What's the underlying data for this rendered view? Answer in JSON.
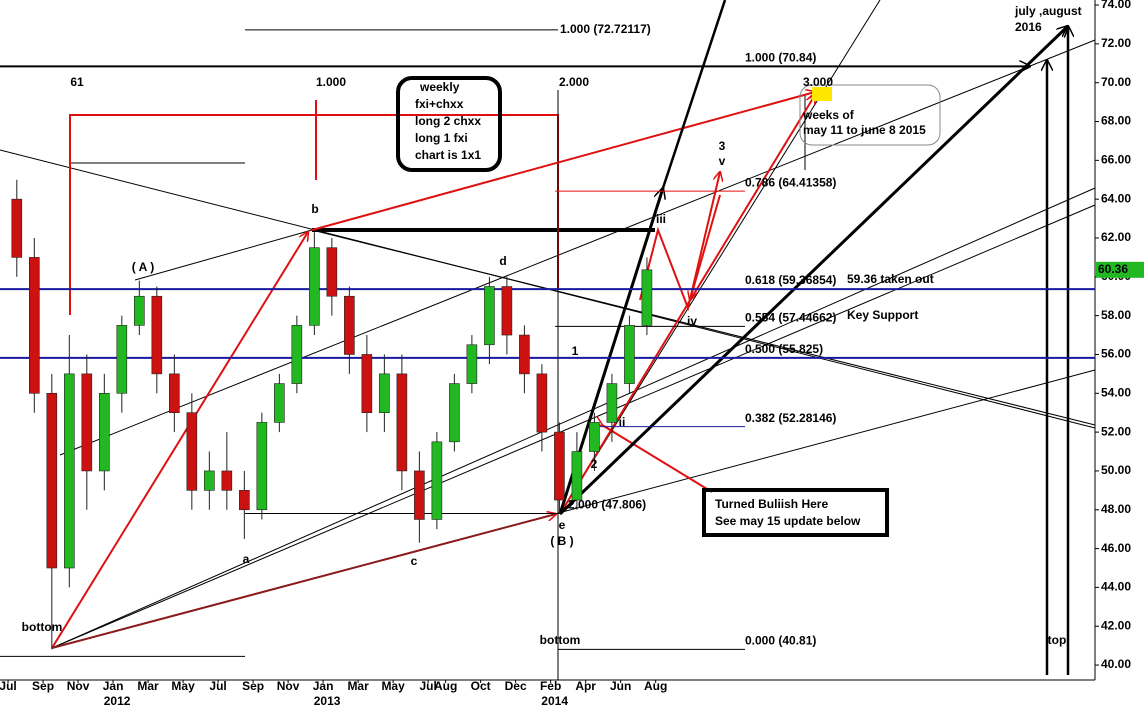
{
  "chart_data": {
    "type": "candlestick",
    "x": [
      0,
      1,
      2,
      3,
      4,
      5,
      6,
      7,
      8,
      9,
      10,
      11,
      12,
      13,
      14,
      15,
      16,
      17,
      18,
      19,
      20,
      21,
      22,
      23,
      24,
      25,
      26,
      27,
      28,
      29,
      30,
      31,
      32,
      33,
      34,
      35,
      36
    ],
    "open": [
      64,
      61,
      54,
      45,
      55,
      50,
      54,
      57.5,
      59,
      55,
      53,
      49,
      50,
      49,
      48,
      52.5,
      54.5,
      57.5,
      61.5,
      59,
      56,
      53,
      55,
      50,
      47.5,
      51.5,
      54.5,
      56.5,
      59.5,
      57,
      55,
      52,
      48.5,
      51,
      52.5,
      54.5,
      57.5
    ],
    "high": [
      65,
      62,
      55,
      57,
      56,
      55,
      58,
      59.8,
      59.5,
      56,
      54,
      51,
      52,
      50,
      53,
      55,
      58,
      62.3,
      62,
      59.5,
      57,
      56,
      56,
      51,
      52,
      55,
      57,
      60,
      60,
      57.5,
      55.5,
      52.5,
      52,
      53,
      55,
      58,
      61
    ],
    "low": [
      60,
      53,
      40.81,
      44,
      48,
      49,
      53,
      57,
      54,
      52,
      48,
      48,
      48,
      46.5,
      47.5,
      52,
      54,
      57,
      58,
      55,
      52,
      52,
      49,
      46.3,
      47,
      51,
      54,
      55.5,
      56,
      54,
      51,
      47.8,
      48,
      50,
      51.5,
      54,
      57
    ],
    "close": [
      61,
      54,
      45,
      55,
      50,
      54,
      57.5,
      59,
      55,
      53,
      49,
      50,
      49,
      48,
      52.5,
      54.5,
      57.5,
      61.5,
      59,
      56,
      53,
      55,
      50,
      47.5,
      51.5,
      54.5,
      56.5,
      59.5,
      57,
      55,
      52,
      48.5,
      51,
      52.5,
      54.5,
      57.5,
      60.36
    ],
    "up_color": "#22b822",
    "down_color": "#cc1111",
    "xlim": [
      -0.46,
      62.1
    ],
    "ylim": [
      39.23,
      74.26
    ],
    "xticks": [
      {
        "value": 0,
        "label": "Jul"
      },
      {
        "value": 2,
        "label": "Sep"
      },
      {
        "value": 4,
        "label": "Nov"
      },
      {
        "value": 6,
        "label": "Jan"
      },
      {
        "value": 8,
        "label": "Mar"
      },
      {
        "value": 10,
        "label": "May"
      },
      {
        "value": 12,
        "label": "Jul"
      },
      {
        "value": 14,
        "label": "Sep"
      },
      {
        "value": 16,
        "label": "Nov"
      },
      {
        "value": 18,
        "label": "Jan"
      },
      {
        "value": 20,
        "label": "Mar"
      },
      {
        "value": 22,
        "label": "May"
      },
      {
        "value": 24,
        "label": "Jul"
      },
      {
        "value": 25,
        "label": "Aug"
      },
      {
        "value": 27,
        "label": "Oct"
      },
      {
        "value": 29,
        "label": "Dec"
      },
      {
        "value": 31,
        "label": "Feb"
      },
      {
        "value": 33,
        "label": "Apr"
      },
      {
        "value": 35,
        "label": "Jun"
      },
      {
        "value": 37,
        "label": "Aug"
      }
    ],
    "year_labels": [
      {
        "value": 6,
        "label": "2012"
      },
      {
        "value": 18,
        "label": "2013"
      },
      {
        "value": 31,
        "label": "2014"
      }
    ],
    "yticks": [
      {
        "value": 40,
        "label": "40.00"
      },
      {
        "value": 42,
        "label": "42.00"
      },
      {
        "value": 44,
        "label": "44.00"
      },
      {
        "value": 46,
        "label": "46.00"
      },
      {
        "value": 48,
        "label": "48.00"
      },
      {
        "value": 50,
        "label": "50.00"
      },
      {
        "value": 52,
        "label": "52.00"
      },
      {
        "value": 54,
        "label": "54.00"
      },
      {
        "value": 56,
        "label": "56.00"
      },
      {
        "value": 58,
        "label": "58.00"
      },
      {
        "value": 60,
        "label": "60.00"
      },
      {
        "value": 62,
        "label": "62.00"
      },
      {
        "value": 64,
        "label": "64.00"
      },
      {
        "value": 66,
        "label": "66.00"
      },
      {
        "value": 68,
        "label": "68.00"
      },
      {
        "value": 70,
        "label": "70.00"
      },
      {
        "value": 72,
        "label": "72.00"
      },
      {
        "value": 74,
        "label": "74.00"
      }
    ],
    "last_price": 60.36,
    "last_price_color": "#22b822",
    "fib_levels": [
      {
        "value": 72.72117,
        "label": "1.000 (72.72117)",
        "color": "#1a1aa0"
      },
      {
        "value": 70.84,
        "label": "1.000 (70.84)",
        "color": "#000000"
      },
      {
        "value": 64.41358,
        "label": "0.786 (64.41358)",
        "color": "#8b1a1a"
      },
      {
        "value": 59.36854,
        "label": "0.618 (59.36854)",
        "color": "#2a8a2a"
      },
      {
        "value": 57.44662,
        "label": "0.554 (57.44662)",
        "color": "#1a1aa0"
      },
      {
        "value": 55.825,
        "label": "0.500 (55.825)",
        "color": "#7a2a7a"
      },
      {
        "value": 52.28146,
        "label": "0.382 (52.28146)",
        "color": "#1a1aa0"
      },
      {
        "value": 47.806,
        "label": "2.000 (47.806)",
        "color": "#000000"
      },
      {
        "value": 40.81,
        "label": "0.000 (40.81)",
        "color": "#000000"
      }
    ],
    "annotations": [
      "61",
      "1.000",
      "2.000",
      "3.000",
      "b",
      "( A )",
      "d",
      "a",
      "c",
      "e",
      "( B )",
      "bottom",
      "bottom",
      "top",
      "1",
      "2",
      "ii",
      "iii",
      "iv",
      "3",
      "v",
      "59.36 taken out",
      "Key Support"
    ],
    "notes": {
      "weekly_box": [
        "weekly",
        "fxi+chxx",
        "long 2 chxx",
        "long 1 fxi",
        "chart is 1x1"
      ],
      "weeks_box": [
        "weeks of",
        "may 11 to june 8 2015"
      ],
      "bullish_box": [
        "Turned Buliish Here",
        "See may 15 update below"
      ],
      "target_label": [
        "july ,august",
        "2016"
      ]
    }
  }
}
